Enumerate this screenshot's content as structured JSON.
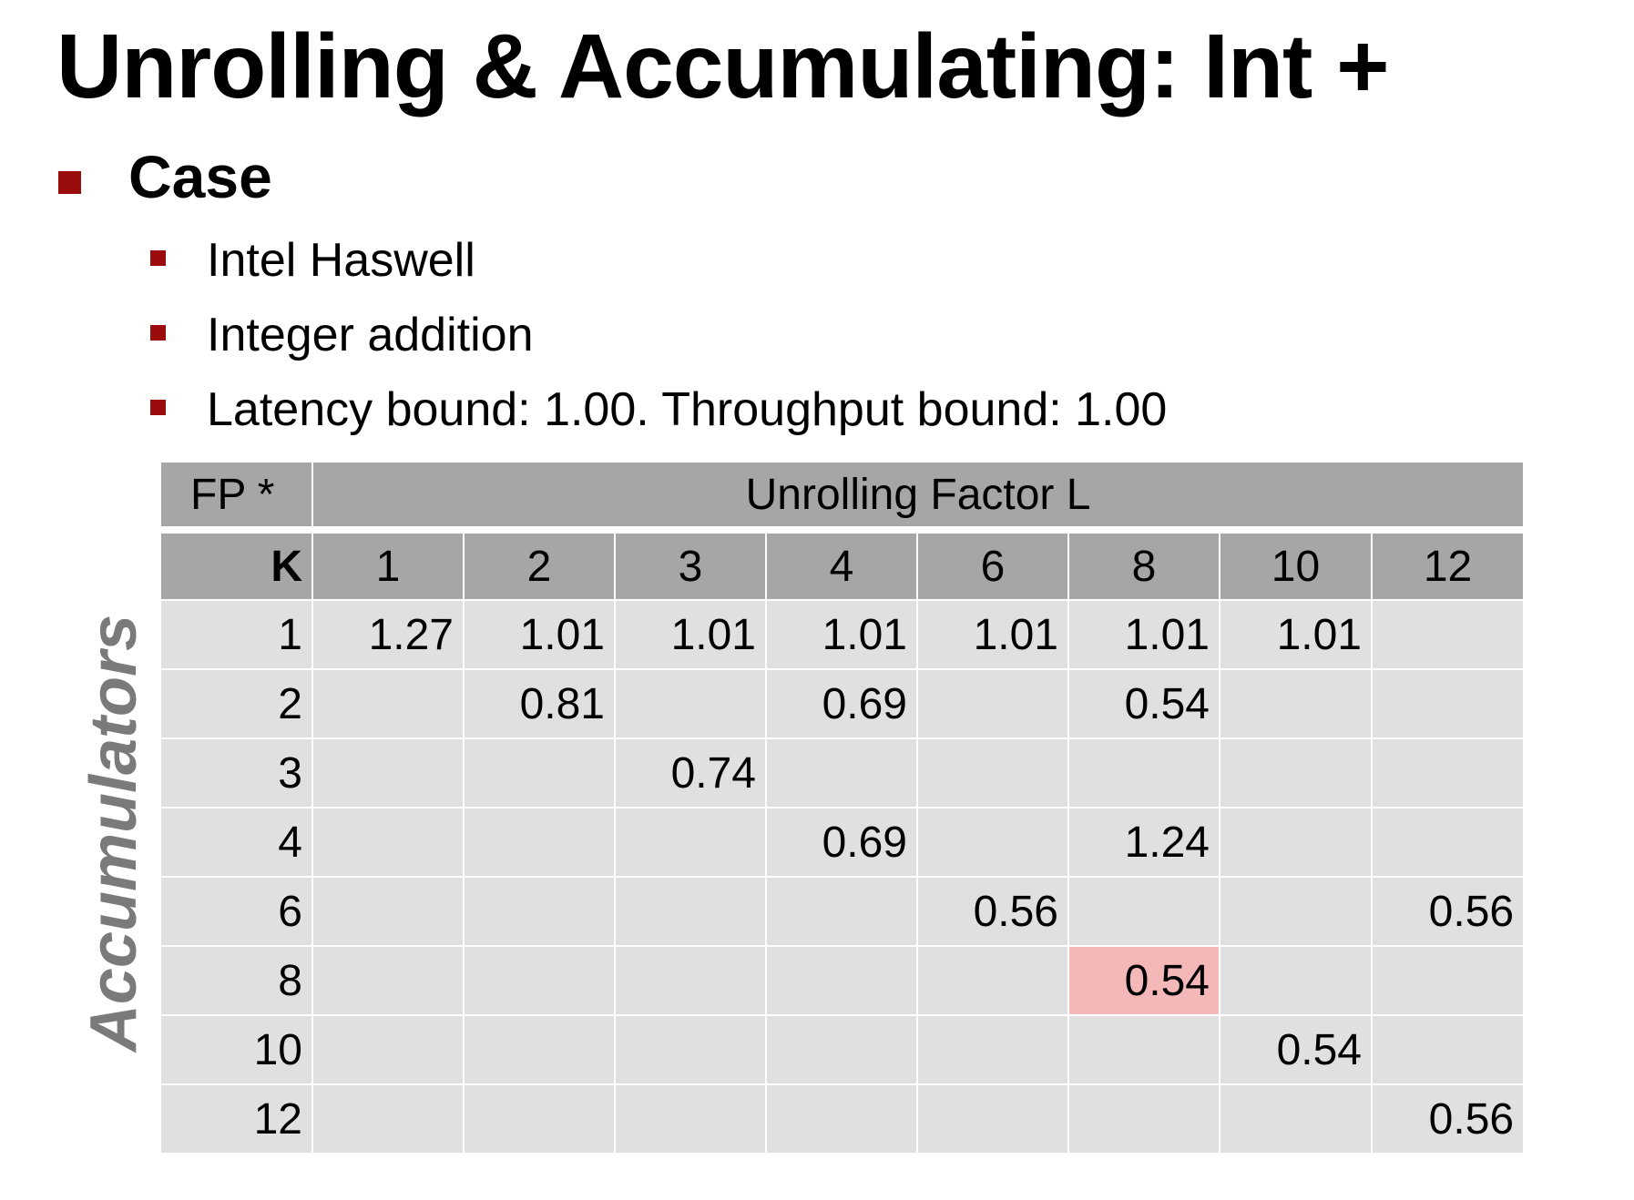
{
  "title": "Unrolling & Accumulating: Int +",
  "case": {
    "label": "Case",
    "items": [
      "Intel Haswell",
      "Integer addition",
      "Latency bound: 1.00.  Throughput bound: 1.00"
    ]
  },
  "side_label": "Accumulators",
  "table": {
    "corner_label": "FP *",
    "group_header": "Unrolling Factor L",
    "k_label": "K",
    "columns": [
      "1",
      "2",
      "3",
      "4",
      "6",
      "8",
      "10",
      "12"
    ],
    "rows": [
      {
        "k": "1",
        "cells": [
          "1.27",
          "1.01",
          "1.01",
          "1.01",
          "1.01",
          "1.01",
          "1.01",
          ""
        ]
      },
      {
        "k": "2",
        "cells": [
          "",
          "0.81",
          "",
          "0.69",
          "",
          "0.54",
          "",
          ""
        ]
      },
      {
        "k": "3",
        "cells": [
          "",
          "",
          "0.74",
          "",
          "",
          "",
          "",
          ""
        ]
      },
      {
        "k": "4",
        "cells": [
          "",
          "",
          "",
          "0.69",
          "",
          "1.24",
          "",
          ""
        ]
      },
      {
        "k": "6",
        "cells": [
          "",
          "",
          "",
          "",
          "0.56",
          "",
          "",
          "0.56"
        ]
      },
      {
        "k": "8",
        "cells": [
          "",
          "",
          "",
          "",
          "",
          "0.54",
          "",
          ""
        ]
      },
      {
        "k": "10",
        "cells": [
          "",
          "",
          "",
          "",
          "",
          "",
          "0.54",
          ""
        ]
      },
      {
        "k": "12",
        "cells": [
          "",
          "",
          "",
          "",
          "",
          "",
          "",
          "0.56"
        ]
      }
    ],
    "highlight": {
      "row": 5,
      "col": 5
    },
    "colors": {
      "header_bg": "#a6a6a6",
      "cell_bg": "#e0e0e0",
      "highlight_bg": "#f4b8b8",
      "bullet": "#9b0d0d",
      "side_label": "#7a7a7a"
    }
  }
}
